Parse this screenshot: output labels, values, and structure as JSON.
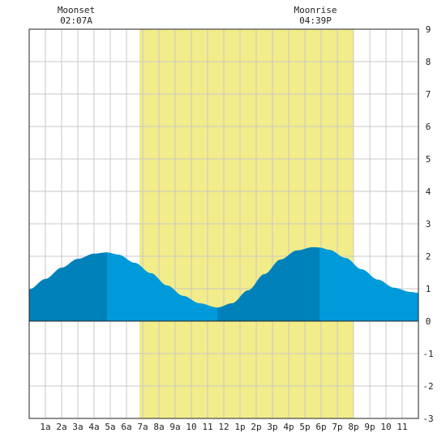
{
  "chart_data": {
    "type": "area",
    "title": "",
    "xlabel": "",
    "ylabel": "",
    "x_range": [
      0,
      24
    ],
    "ylim": [
      -3,
      9
    ],
    "y_ticks": [
      -3,
      -2,
      -1,
      0,
      1,
      2,
      3,
      4,
      5,
      6,
      7,
      8,
      9
    ],
    "x_tick_labels": [
      "1a",
      "2a",
      "3a",
      "4a",
      "5a",
      "6a",
      "7a",
      "8a",
      "9a",
      "10",
      "11",
      "12",
      "1p",
      "2p",
      "3p",
      "4p",
      "5p",
      "6p",
      "7p",
      "8p",
      "9p",
      "10",
      "11"
    ],
    "grid": true,
    "daylight": {
      "start": 6.8,
      "end": 20.0
    },
    "tide_series": {
      "x": [
        0,
        1,
        2,
        3,
        4,
        4.8,
        5.5,
        6.5,
        7.5,
        8.5,
        9.5,
        10.5,
        11.6,
        12.5,
        13.5,
        14.5,
        15.5,
        16.5,
        17.5,
        17.9,
        18.5,
        19.5,
        20.5,
        21.5,
        22.5,
        23.5,
        24
      ],
      "y": [
        0.98,
        1.3,
        1.65,
        1.92,
        2.08,
        2.12,
        2.05,
        1.8,
        1.48,
        1.1,
        0.78,
        0.55,
        0.42,
        0.55,
        0.95,
        1.45,
        1.9,
        2.18,
        2.28,
        2.27,
        2.2,
        1.95,
        1.6,
        1.28,
        1.03,
        0.9,
        0.87
      ]
    },
    "tide_extremes": [
      {
        "type": "high",
        "x": 4.8,
        "y": 2.12
      },
      {
        "type": "low",
        "x": 11.6,
        "y": 0.42
      },
      {
        "type": "high",
        "x": 17.9,
        "y": 2.27
      }
    ],
    "annotations": [
      {
        "label": "Moonset",
        "time": "02:07A",
        "x": 2.1
      },
      {
        "label": "Moonrise",
        "time": "04:39P",
        "x": 16.65
      }
    ],
    "colors": {
      "background": "#ffffff",
      "daylight": "#f2ec8a",
      "grid": "#c8c8c8",
      "axis": "#222222",
      "tide_light": "#009ada",
      "tide_dark": "#0081ba"
    }
  }
}
